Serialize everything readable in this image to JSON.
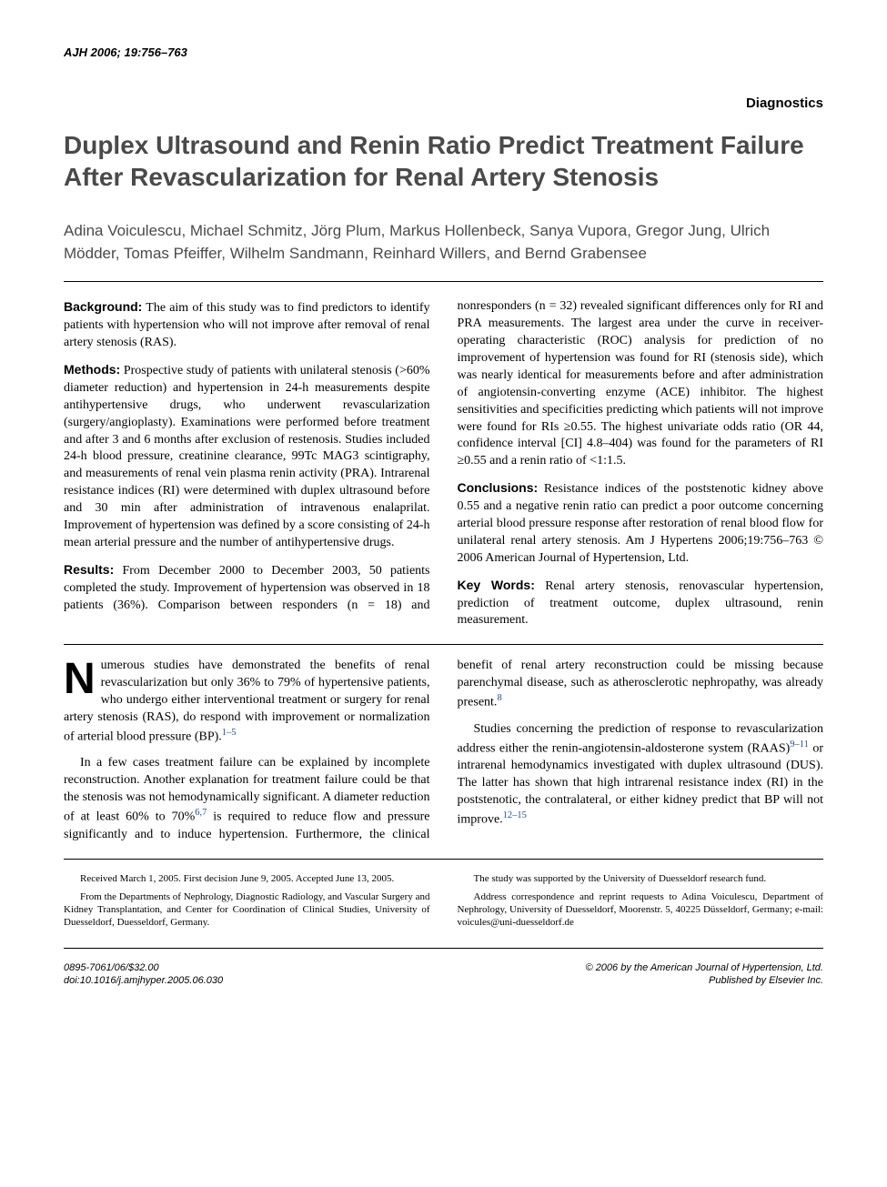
{
  "journal_header": "AJH  2006; 19:756–763",
  "section_label": "Diagnostics",
  "title": "Duplex Ultrasound and Renin Ratio Predict Treatment Failure After Revascularization for Renal Artery Stenosis",
  "authors": "Adina Voiculescu, Michael Schmitz, Jörg Plum, Markus Hollenbeck, Sanya Vupora, Gregor Jung, Ulrich Mödder, Tomas Pfeiffer, Wilhelm Sandmann, Reinhard Willers, and Bernd Grabensee",
  "abstract": {
    "background_label": "Background:",
    "background": "The aim of this study was to find predictors to identify patients with hypertension who will not improve after removal of renal artery stenosis (RAS).",
    "methods_label": "Methods:",
    "methods": "Prospective study of patients with unilateral stenosis (>60% diameter reduction) and hypertension in 24-h measurements despite antihypertensive drugs, who underwent revascularization (surgery/angioplasty). Examinations were performed before treatment and after 3 and 6 months after exclusion of restenosis. Studies included 24-h blood pressure, creatinine clearance, 99Tc MAG3 scintigraphy, and measurements of renal vein plasma renin activity (PRA). Intrarenal resistance indices (RI) were determined with duplex ultrasound before and 30 min after administration of intravenous enalaprilat. Improvement of hypertension was defined by a score consisting of 24-h mean arterial pressure and the number of antihypertensive drugs.",
    "results_label": "Results:",
    "results_a": "From December 2000 to December 2003, 50 patients completed the study. Improvement of hypertension was observed in 18 patients (36%). Comparison between responders (n = 18) and nonresponders (n = 32)",
    "results_b": "revealed significant differences only for RI and PRA measurements. The largest area under the curve in receiver-operating characteristic (ROC) analysis for prediction of no improvement of hypertension was found for RI (stenosis side), which was nearly identical for measurements before and after administration of angiotensin-converting enzyme (ACE) inhibitor. The highest sensitivities and specificities predicting which patients will not improve were found for RIs ≥0.55. The highest univariate odds ratio (OR 44, confidence interval [CI] 4.8–404) was found for the parameters of RI ≥0.55 and a renin ratio of <1:1.5.",
    "conclusions_label": "Conclusions:",
    "conclusions": "Resistance indices of the poststenotic kidney above 0.55 and a negative renin ratio can predict a poor outcome concerning arterial blood pressure response after restoration of renal blood flow for unilateral renal artery stenosis. Am J Hypertens 2006;19:756–763 © 2006 American Journal of Hypertension, Ltd.",
    "keywords_label": "Key Words:",
    "keywords": "Renal artery stenosis, renovascular hypertension, prediction of treatment outcome, duplex ultrasound, renin measurement."
  },
  "body": {
    "dropcap": "N",
    "p1_rest": "umerous studies have demonstrated the benefits of renal revascularization but only 36% to 79% of hypertensive patients, who undergo either interventional treatment or surgery for renal artery stenosis (RAS), do respond with improvement or normalization of arterial blood pressure (BP).",
    "p1_ref": "1–5",
    "p2a": "In a few cases treatment failure can be explained by incomplete reconstruction. Another explanation for treatment failure could be that the stenosis was not hemodynamically significant. A diameter reduction of at least 60% to 70%",
    "p2_ref1": "6,7",
    "p2b": " is required to reduce flow and pressure signifi",
    "p2c": "cantly and to induce hypertension. Furthermore, the clinical benefit of renal artery reconstruction could be missing because parenchymal disease, such as atherosclerotic nephropathy, was already present.",
    "p2_ref2": "8",
    "p3a": "Studies concerning the prediction of response to revascularization address either the renin-angiotensin-aldosterone system (RAAS)",
    "p3_ref1": "9–11",
    "p3b": " or intrarenal hemodynamics investigated with duplex ultrasound (DUS). The latter has shown that high intrarenal resistance index (RI) in the poststenotic, the contralateral, or either kidney predict that BP will not improve.",
    "p3_ref2": "12–15"
  },
  "footer": {
    "received": "Received March 1, 2005. First decision June 9, 2005. Accepted June 13, 2005.",
    "from": "From the Departments of Nephrology, Diagnostic Radiology, and Vascular Surgery and Kidney Transplantation, and Center for Coordination of Clinical Studies, University of Duesseldorf, Duesseldorf, Germany.",
    "support": "The study was supported by the University of Duesseldorf research fund.",
    "correspondence": "Address correspondence and reprint requests to Adina Voiculescu, Department of Nephrology, University of Duesseldorf, Moorenstr. 5, 40225 Düsseldorf, Germany; e-mail: voicules@uni-duesseldorf.de"
  },
  "copyright": {
    "left1": "0895-7061/06/$32.00",
    "left2": "doi:10.1016/j.amjhyper.2005.06.030",
    "right1": "© 2006 by the American Journal of Hypertension, Ltd.",
    "right2": "Published by Elsevier Inc."
  },
  "colors": {
    "title_color": "#4a4a4a",
    "ref_link_color": "#1a4f9c",
    "text_color": "#000000",
    "background": "#ffffff"
  }
}
